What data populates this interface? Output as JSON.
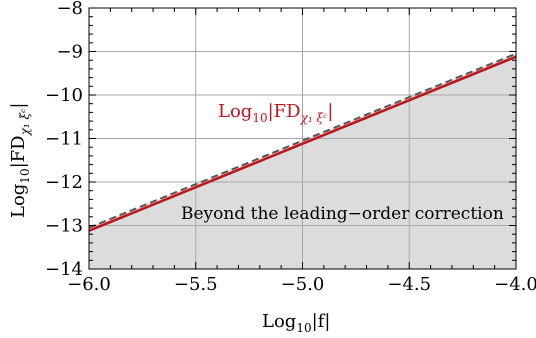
{
  "chart_data": {
    "type": "line",
    "title": "",
    "xlabel": {
      "base": "Log",
      "sub": "10",
      "rest": "|f|"
    },
    "ylabel": {
      "base": "Log",
      "sub": "10",
      "rest": "|FD",
      "sub2": "χ₁ ξᶜ",
      "end": "|"
    },
    "xlim": [
      -6.0,
      -4.0
    ],
    "ylim": [
      -14,
      -8
    ],
    "x_ticks": [
      -6.0,
      -5.5,
      -5.0,
      -4.5,
      -4.0
    ],
    "x_tick_labels": [
      "−6.0",
      "−5.5",
      "−5.0",
      "−4.5",
      "−4.0"
    ],
    "y_ticks": [
      -14,
      -13,
      -12,
      -11,
      -10,
      -9,
      -8
    ],
    "y_tick_labels": [
      "−14",
      "−13",
      "−12",
      "−11",
      "−10",
      "−9",
      "−8"
    ],
    "grid": true,
    "series": [
      {
        "name": "Log10|FD χ1 ξc|",
        "style": "solid",
        "color": "#c0151b",
        "x": [
          -6.0,
          -4.0
        ],
        "y": [
          -13.12,
          -9.12
        ]
      },
      {
        "style": "dashed",
        "color": "#555555",
        "x": [
          -6.0,
          -4.0
        ],
        "y": [
          -13.05,
          -9.05
        ]
      }
    ],
    "shaded_region": {
      "description_text": "Beyond the leading−order correction",
      "color": "#dcdcdc",
      "bounded_by": "below series 2"
    },
    "series_label": {
      "base": "Log",
      "sub": "10",
      "rest": "|FD",
      "sub2": "χ₁ ξᶜ",
      "end": "|"
    },
    "annotation": "Beyond the leading−order correction"
  }
}
